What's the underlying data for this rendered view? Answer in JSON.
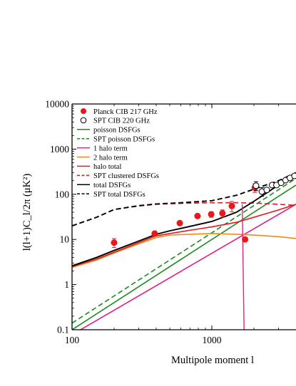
{
  "chart_data": {
    "type": "line",
    "xscale": "log",
    "yscale": "log",
    "xlim": [
      100,
      4000
    ],
    "ylim": [
      0.1,
      10000
    ],
    "xlabel": "Multipole moment l",
    "ylabel": "l(l+1)C_l/2π (μK²)",
    "xticks": [
      {
        "value": 100,
        "label": "100"
      },
      {
        "value": 1000,
        "label": "1000"
      }
    ],
    "yticks": [
      {
        "value": 0.1,
        "label": "0.1"
      },
      {
        "value": 1,
        "label": "1"
      },
      {
        "value": 10,
        "label": "10"
      },
      {
        "value": 100,
        "label": "100"
      },
      {
        "value": 1000,
        "label": "1000"
      },
      {
        "value": 10000,
        "label": "10000"
      }
    ],
    "legend_position": "top-left",
    "series": [
      {
        "name": "Planck CIB 217 GHz",
        "kind": "points",
        "marker": "filled-circle",
        "color": "#e8191c",
        "points": [
          [
            200,
            8.5,
            1.9
          ],
          [
            390,
            13.5,
            1.6
          ],
          [
            590,
            23,
            2.4
          ],
          [
            790,
            33,
            3.6
          ],
          [
            990,
            36,
            5
          ],
          [
            1190,
            38,
            7
          ],
          [
            1390,
            55,
            14
          ],
          [
            1730,
            10,
            0
          ],
          [
            2030,
            140,
            30
          ]
        ]
      },
      {
        "name": "SPT CIB 220 GHz",
        "kind": "points",
        "marker": "open-circle",
        "color": "#000000",
        "points": [
          [
            2070,
            155,
            35
          ],
          [
            2280,
            115,
            25
          ],
          [
            2470,
            125,
            15
          ],
          [
            2700,
            160,
            15
          ],
          [
            2900,
            160,
            15
          ],
          [
            3130,
            180,
            18
          ],
          [
            3370,
            205,
            18
          ],
          [
            3620,
            230,
            20
          ],
          [
            3900,
            255,
            22
          ]
        ]
      },
      {
        "name": "poisson DSFGs",
        "kind": "line",
        "style": "solid",
        "color": "#1c8a1c",
        "points": [
          [
            100,
            0.1
          ],
          [
            4000,
            160
          ]
        ]
      },
      {
        "name": "SPT poisson DSFGs",
        "kind": "line",
        "style": "dashed",
        "color": "#1c8a1c",
        "points": [
          [
            100,
            0.14
          ],
          [
            4000,
            225
          ]
        ]
      },
      {
        "name": "1 halo term",
        "kind": "line",
        "style": "solid",
        "color": "#e0218a",
        "points": [
          [
            115,
            0.1
          ],
          [
            4000,
            60
          ]
        ]
      },
      {
        "name": "2 halo term",
        "kind": "line",
        "style": "solid",
        "color": "#f08a1a",
        "points": [
          [
            100,
            2.4
          ],
          [
            150,
            3.5
          ],
          [
            200,
            5
          ],
          [
            300,
            8
          ],
          [
            400,
            11
          ],
          [
            500,
            12.5
          ],
          [
            700,
            13
          ],
          [
            1000,
            13.5
          ],
          [
            1500,
            13
          ],
          [
            2000,
            12.5
          ],
          [
            3000,
            11.5
          ],
          [
            4000,
            10.5
          ]
        ]
      },
      {
        "name": "halo total",
        "kind": "line",
        "style": "solid",
        "color": "#e8191c",
        "points": [
          [
            100,
            2.5
          ],
          [
            150,
            3.7
          ],
          [
            200,
            5.2
          ],
          [
            300,
            8.5
          ],
          [
            400,
            12
          ],
          [
            500,
            13.5
          ],
          [
            700,
            16
          ],
          [
            1000,
            19
          ],
          [
            1500,
            24
          ],
          [
            2000,
            31
          ],
          [
            3000,
            45
          ],
          [
            4000,
            60
          ]
        ]
      },
      {
        "name": "SPT clustered DSFGs",
        "kind": "line",
        "style": "dashed",
        "color": "#e8191c",
        "points": [
          [
            100,
            20
          ],
          [
            150,
            31
          ],
          [
            200,
            46
          ],
          [
            300,
            55
          ],
          [
            400,
            60
          ],
          [
            600,
            63
          ],
          [
            1000,
            65
          ],
          [
            1500,
            65
          ],
          [
            2000,
            64
          ],
          [
            3000,
            60
          ],
          [
            4000,
            57
          ]
        ]
      },
      {
        "name": "total DSFGs",
        "kind": "line",
        "style": "solid",
        "color": "#000000",
        "points": [
          [
            100,
            2.6
          ],
          [
            150,
            4
          ],
          [
            200,
            5.7
          ],
          [
            300,
            9.2
          ],
          [
            400,
            13
          ],
          [
            500,
            15.5
          ],
          [
            700,
            19.5
          ],
          [
            1000,
            25
          ],
          [
            1500,
            40
          ],
          [
            2000,
            70
          ],
          [
            3000,
            160
          ],
          [
            4000,
            250
          ]
        ]
      },
      {
        "name": "SPT total DSFGs",
        "kind": "line",
        "style": "dashed",
        "color": "#000000",
        "points": [
          [
            100,
            20
          ],
          [
            150,
            31
          ],
          [
            200,
            46
          ],
          [
            300,
            56
          ],
          [
            400,
            61
          ],
          [
            600,
            65
          ],
          [
            1000,
            72
          ],
          [
            1500,
            95
          ],
          [
            2000,
            130
          ],
          [
            3000,
            200
          ],
          [
            4000,
            300
          ]
        ]
      }
    ],
    "annotations": [
      {
        "series": "1 halo term",
        "description": "spike",
        "points": [
          [
            1650,
            60
          ],
          [
            1700,
            0.1
          ]
        ]
      }
    ]
  }
}
